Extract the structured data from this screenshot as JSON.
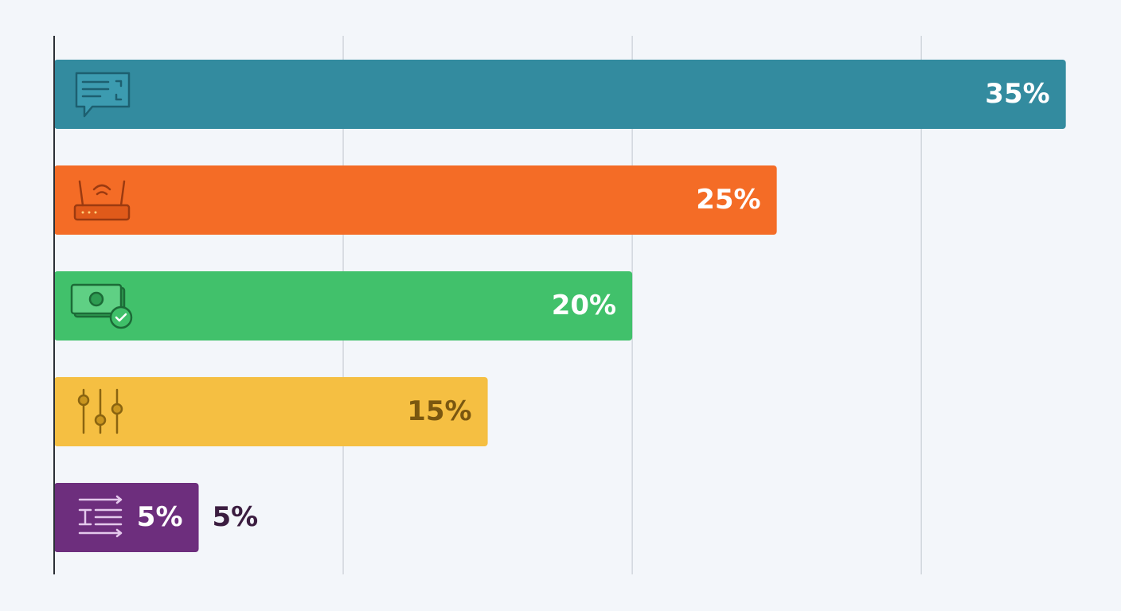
{
  "chart_data": {
    "type": "bar",
    "orientation": "horizontal",
    "categories": [
      null,
      null,
      null,
      null,
      null
    ],
    "values": [
      35,
      25,
      20,
      15,
      5
    ],
    "value_labels": [
      "35%",
      "25%",
      "20%",
      "15%",
      "5%"
    ],
    "colors": [
      "#338b9f",
      "#f46c26",
      "#41c16b",
      "#f5bf42",
      "#6d2e7d"
    ],
    "xlim": [
      0,
      36
    ],
    "xticks": [
      10,
      20,
      30
    ],
    "grid": true
  }
}
